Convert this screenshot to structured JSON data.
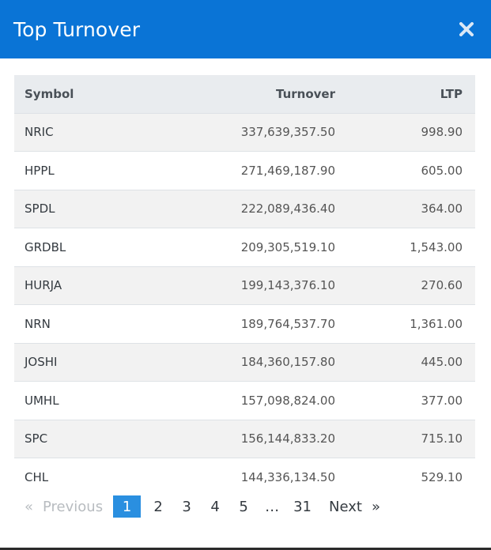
{
  "modal": {
    "title": "Top Turnover",
    "close_icon": "close-icon"
  },
  "table": {
    "headers": {
      "symbol": "Symbol",
      "turnover": "Turnover",
      "ltp": "LTP"
    },
    "rows": [
      {
        "symbol": "NRIC",
        "turnover": "337,639,357.50",
        "ltp": "998.90"
      },
      {
        "symbol": "HPPL",
        "turnover": "271,469,187.90",
        "ltp": "605.00"
      },
      {
        "symbol": "SPDL",
        "turnover": "222,089,436.40",
        "ltp": "364.00"
      },
      {
        "symbol": "GRDBL",
        "turnover": "209,305,519.10",
        "ltp": "1,543.00"
      },
      {
        "symbol": "HURJA",
        "turnover": "199,143,376.10",
        "ltp": "270.60"
      },
      {
        "symbol": "NRN",
        "turnover": "189,764,537.70",
        "ltp": "1,361.00"
      },
      {
        "symbol": "JOSHI",
        "turnover": "184,360,157.80",
        "ltp": "445.00"
      },
      {
        "symbol": "UMHL",
        "turnover": "157,098,824.00",
        "ltp": "377.00"
      },
      {
        "symbol": "SPC",
        "turnover": "156,144,833.20",
        "ltp": "715.10"
      },
      {
        "symbol": "CHL",
        "turnover": "144,336,134.50",
        "ltp": "529.10"
      }
    ]
  },
  "pagination": {
    "prev_arrow": "«",
    "previous_label": "Previous",
    "pages": [
      "1",
      "2",
      "3",
      "4",
      "5"
    ],
    "ellipsis": "…",
    "last_page": "31",
    "next_label": "Next",
    "next_arrow": "»",
    "current_page": "1"
  },
  "colors": {
    "header_bg": "#0a74d6",
    "current_page_bg": "#2a8fe0"
  }
}
